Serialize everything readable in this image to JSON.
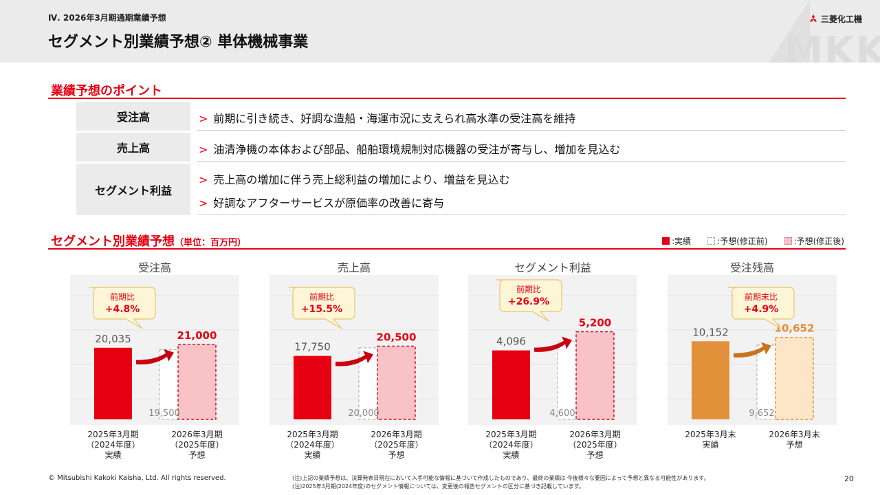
{
  "header": {
    "section": "Ⅳ. 2026年3月期通期業績予想",
    "title": "セグメント別業績予想② 単体機械事業",
    "watermark": "MKK",
    "logo_text": "三菱化工機"
  },
  "points": {
    "title": "業績予想のポイント",
    "rows": [
      {
        "label": "受注高",
        "lines": [
          "前期に引き続き、好調な造船・海運市況に支えられ高水準の受注高を維持"
        ]
      },
      {
        "label": "売上高",
        "lines": [
          "油清浄機の本体および部品、船舶環境規制対応機器の受注が寄与し、増加を見込む"
        ]
      },
      {
        "label": "セグメント利益",
        "lines": [
          "売上高の増加に伴う売上総利益の増加により、増益を見込む",
          "好調なアフターサービスが原価率の改善に寄与"
        ]
      }
    ]
  },
  "forecast": {
    "title": "セグメント別業績予想",
    "unit": "（単位：百万円）"
  },
  "legend": [
    {
      "label": ":実績",
      "color": "#e60012",
      "style": "solid"
    },
    {
      "label": ":予想(修正前)",
      "color": "#ffffff",
      "style": "dashed-gray"
    },
    {
      "label": ":予想(修正後)",
      "color": "#f9c2c6",
      "style": "dashed-red"
    }
  ],
  "chart_data": [
    {
      "type": "bar",
      "title": "受注高",
      "categories": [
        "2025年3月期\n（2024年度）\n実績",
        "2026年3月期\n（2025年度）\n予想"
      ],
      "series": [
        {
          "name": "実績",
          "values": [
            20035,
            null
          ]
        },
        {
          "name": "予想(修正前)",
          "values": [
            null,
            19500
          ]
        },
        {
          "name": "予想(修正後)",
          "values": [
            null,
            21000
          ]
        }
      ],
      "labels": {
        "actual": "20,035",
        "before": "19,500",
        "after": "21,000"
      },
      "callout": [
        "前期比",
        "+4.8%"
      ],
      "colors": {
        "actual": "#e60012",
        "after": "#f9c2c6",
        "after_border": "#d0021b",
        "label": "#e60012",
        "arrow": "#c8000f"
      }
    },
    {
      "type": "bar",
      "title": "売上高",
      "categories": [
        "2025年3月期\n（2024年度）\n実績",
        "2026年3月期\n（2025年度）\n予想"
      ],
      "series": [
        {
          "name": "実績",
          "values": [
            17750,
            null
          ]
        },
        {
          "name": "予想(修正前)",
          "values": [
            null,
            20000
          ]
        },
        {
          "name": "予想(修正後)",
          "values": [
            null,
            20500
          ]
        }
      ],
      "labels": {
        "actual": "17,750",
        "before": "20,000",
        "after": "20,500"
      },
      "callout": [
        "前期比",
        "+15.5%"
      ],
      "colors": {
        "actual": "#e60012",
        "after": "#f9c2c6",
        "after_border": "#d0021b",
        "label": "#e60012",
        "arrow": "#c8000f"
      }
    },
    {
      "type": "bar",
      "title": "セグメント利益",
      "categories": [
        "2025年3月期\n（2024年度）\n実績",
        "2026年3月期\n（2025年度）\n予想"
      ],
      "series": [
        {
          "name": "実績",
          "values": [
            4096,
            null
          ]
        },
        {
          "name": "予想(修正前)",
          "values": [
            null,
            4600
          ]
        },
        {
          "name": "予想(修正後)",
          "values": [
            null,
            5200
          ]
        }
      ],
      "labels": {
        "actual": "4,096",
        "before": "4,600",
        "after": "5,200"
      },
      "callout": [
        "前期比",
        "+26.9%"
      ],
      "colors": {
        "actual": "#e60012",
        "after": "#f9c2c6",
        "after_border": "#d0021b",
        "label": "#e60012",
        "arrow": "#c8000f"
      }
    },
    {
      "type": "bar",
      "title": "受注残高",
      "categories": [
        "2025年3月末\n実績",
        "2026年3月末\n予想"
      ],
      "series": [
        {
          "name": "実績",
          "values": [
            10152,
            null
          ]
        },
        {
          "name": "予想(修正前)",
          "values": [
            null,
            9652
          ]
        },
        {
          "name": "予想(修正後)",
          "values": [
            null,
            10652
          ]
        }
      ],
      "labels": {
        "actual": "10,152",
        "before": "9,652",
        "after": "10,652"
      },
      "callout": [
        "前期末比",
        "+4.9%"
      ],
      "colors": {
        "actual": "#e3903a",
        "after": "#fde6c8",
        "after_border": "#e88a2a",
        "label": "#e88a2a",
        "arrow": "#c8741f"
      }
    }
  ],
  "footer": {
    "copyright": "© Mitsubishi Kakoki Kaisha, Ltd. All rights reserved.",
    "notes": [
      "(注)上記の業績予想は、決算発表日現在において入手可能な情報に基づいて作成したものであり、最終の業績は 今後様々な要因によって予想と異なる可能性があります。",
      "(注)2025年3月期(2024年度)のセグメント情報については、変更後の報告セグメントの区分に基づき記載しています。"
    ],
    "page": "20"
  }
}
